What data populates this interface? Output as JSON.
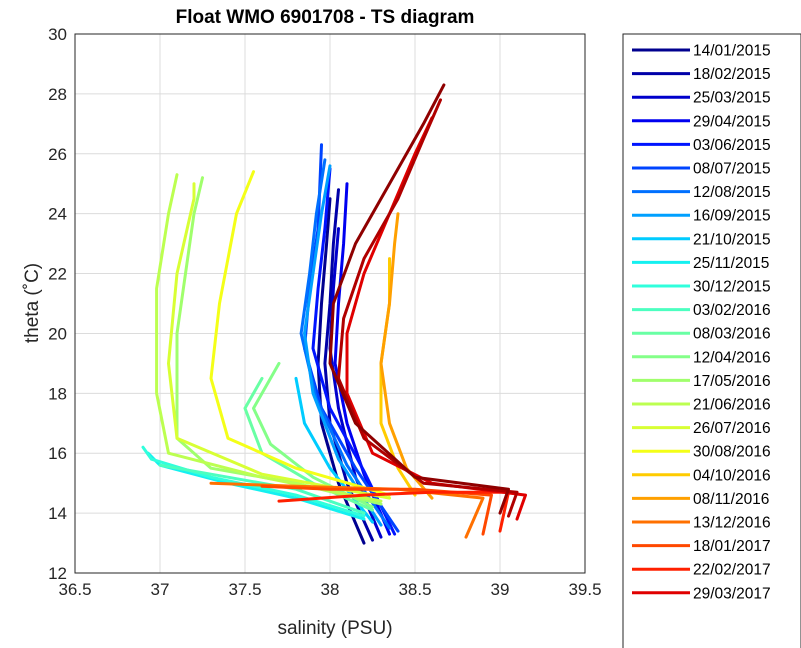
{
  "chart_data": {
    "type": "line",
    "title": "Float WMO 6901708 - TS diagram",
    "xlabel": "salinity (PSU)",
    "ylabel": "theta (˚C)",
    "xlim": [
      36.5,
      39.5
    ],
    "ylim": [
      12,
      30
    ],
    "xticks": [
      "36.5",
      "37",
      "37.5",
      "38",
      "38.5",
      "39",
      "39.5"
    ],
    "yticks": [
      "12",
      "14",
      "16",
      "18",
      "20",
      "22",
      "24",
      "26",
      "28",
      "30"
    ],
    "grid": true,
    "legend_position": "outside-right",
    "series": [
      {
        "name": "14/01/2015",
        "color": "#00008f",
        "points": [
          [
            38.2,
            13.0
          ],
          [
            38.05,
            15.0
          ],
          [
            37.95,
            17.0
          ],
          [
            37.93,
            19.0
          ],
          [
            37.95,
            21.0
          ],
          [
            37.98,
            23.0
          ],
          [
            38.0,
            24.5
          ]
        ]
      },
      {
        "name": "18/02/2015",
        "color": "#0000a8",
        "points": [
          [
            38.25,
            13.1
          ],
          [
            38.1,
            15.0
          ],
          [
            38.0,
            17.0
          ],
          [
            37.97,
            19.0
          ],
          [
            38.0,
            21.0
          ],
          [
            38.02,
            23.0
          ],
          [
            38.05,
            24.8
          ]
        ]
      },
      {
        "name": "25/03/2015",
        "color": "#0000cc",
        "points": [
          [
            38.3,
            13.2
          ],
          [
            38.15,
            15.2
          ],
          [
            38.05,
            17.5
          ],
          [
            38.0,
            19.5
          ],
          [
            38.02,
            21.5
          ],
          [
            38.05,
            23.5
          ]
        ]
      },
      {
        "name": "29/04/2015",
        "color": "#0000f0",
        "points": [
          [
            38.35,
            13.3
          ],
          [
            38.2,
            15.3
          ],
          [
            38.1,
            17.0
          ],
          [
            38.03,
            19.0
          ],
          [
            38.05,
            21.0
          ],
          [
            38.08,
            23.0
          ],
          [
            38.1,
            25.0
          ]
        ]
      },
      {
        "name": "03/06/2015",
        "color": "#0014ff",
        "points": [
          [
            38.38,
            13.3
          ],
          [
            38.2,
            15.4
          ],
          [
            38.0,
            17.5
          ],
          [
            37.9,
            19.5
          ],
          [
            37.93,
            21.5
          ],
          [
            37.97,
            23.5
          ],
          [
            38.0,
            25.5
          ]
        ]
      },
      {
        "name": "08/07/2015",
        "color": "#0044ff",
        "points": [
          [
            38.4,
            13.4
          ],
          [
            38.15,
            15.5
          ],
          [
            37.95,
            17.5
          ],
          [
            37.85,
            19.5
          ],
          [
            37.88,
            21.5
          ],
          [
            37.93,
            23.5
          ],
          [
            37.95,
            26.3
          ]
        ]
      },
      {
        "name": "12/08/2015",
        "color": "#0070ff",
        "points": [
          [
            38.35,
            13.5
          ],
          [
            38.1,
            15.6
          ],
          [
            37.92,
            17.8
          ],
          [
            37.83,
            20.0
          ],
          [
            37.88,
            22.0
          ],
          [
            37.92,
            24.0
          ],
          [
            37.97,
            25.8
          ]
        ]
      },
      {
        "name": "16/09/2015",
        "color": "#00a0ff",
        "points": [
          [
            38.3,
            13.6
          ],
          [
            38.05,
            15.8
          ],
          [
            37.9,
            18.0
          ],
          [
            37.85,
            20.0
          ],
          [
            37.9,
            22.0
          ],
          [
            37.95,
            24.0
          ],
          [
            38.0,
            25.6
          ]
        ]
      },
      {
        "name": "21/10/2015",
        "color": "#00ccff",
        "points": [
          [
            38.25,
            13.7
          ],
          [
            38.0,
            15.5
          ],
          [
            37.85,
            17.0
          ],
          [
            37.8,
            18.5
          ]
        ]
      },
      {
        "name": "25/11/2015",
        "color": "#14f0f0",
        "points": [
          [
            38.2,
            13.8
          ],
          [
            37.8,
            14.5
          ],
          [
            37.4,
            15.0
          ],
          [
            37.0,
            15.6
          ],
          [
            36.93,
            16.0
          ]
        ]
      },
      {
        "name": "30/12/2015",
        "color": "#30ffdc",
        "points": [
          [
            38.2,
            13.9
          ],
          [
            37.8,
            14.6
          ],
          [
            37.3,
            15.2
          ],
          [
            36.95,
            15.8
          ],
          [
            36.9,
            16.2
          ]
        ]
      },
      {
        "name": "03/02/2016",
        "color": "#4cffc0",
        "points": [
          [
            38.2,
            14.0
          ],
          [
            37.8,
            14.8
          ],
          [
            37.3,
            15.3
          ],
          [
            37.0,
            15.6
          ]
        ]
      },
      {
        "name": "08/03/2016",
        "color": "#68ffa4",
        "points": [
          [
            38.25,
            14.1
          ],
          [
            37.9,
            15.0
          ],
          [
            37.6,
            16.0
          ],
          [
            37.5,
            17.5
          ],
          [
            37.6,
            18.5
          ]
        ]
      },
      {
        "name": "12/04/2016",
        "color": "#84ff88",
        "points": [
          [
            38.25,
            14.2
          ],
          [
            37.9,
            15.2
          ],
          [
            37.65,
            16.3
          ],
          [
            37.55,
            17.5
          ],
          [
            37.7,
            19.0
          ]
        ]
      },
      {
        "name": "17/05/2016",
        "color": "#a0ff6c",
        "points": [
          [
            38.3,
            14.3
          ],
          [
            37.8,
            15.0
          ],
          [
            37.3,
            15.5
          ],
          [
            37.1,
            16.5
          ],
          [
            37.1,
            20.0
          ],
          [
            37.2,
            24.0
          ],
          [
            37.25,
            25.2
          ]
        ]
      },
      {
        "name": "21/06/2016",
        "color": "#bcff50",
        "points": [
          [
            38.3,
            14.4
          ],
          [
            37.6,
            15.2
          ],
          [
            37.05,
            16.0
          ],
          [
            36.98,
            18.0
          ],
          [
            36.98,
            21.5
          ],
          [
            37.05,
            24.0
          ],
          [
            37.1,
            25.3
          ]
        ]
      },
      {
        "name": "26/07/2016",
        "color": "#d8ff34",
        "points": [
          [
            38.35,
            14.5
          ],
          [
            37.6,
            15.3
          ],
          [
            37.1,
            16.5
          ],
          [
            37.05,
            19.0
          ],
          [
            37.1,
            22.0
          ],
          [
            37.2,
            24.5
          ],
          [
            37.2,
            25.0
          ]
        ]
      },
      {
        "name": "30/08/2016",
        "color": "#f4ff18",
        "points": [
          [
            38.35,
            14.6
          ],
          [
            37.8,
            15.5
          ],
          [
            37.4,
            16.5
          ],
          [
            37.3,
            18.5
          ],
          [
            37.35,
            21.0
          ],
          [
            37.45,
            24.0
          ],
          [
            37.55,
            25.4
          ]
        ]
      },
      {
        "name": "04/10/2016",
        "color": "#ffcc00",
        "points": [
          [
            38.5,
            14.6
          ],
          [
            38.4,
            15.5
          ],
          [
            38.3,
            17.0
          ],
          [
            38.3,
            19.0
          ],
          [
            38.35,
            21.0
          ],
          [
            38.35,
            22.5
          ]
        ]
      },
      {
        "name": "08/11/2016",
        "color": "#ffa000",
        "points": [
          [
            38.6,
            14.5
          ],
          [
            38.45,
            15.5
          ],
          [
            38.35,
            17.0
          ],
          [
            38.3,
            19.0
          ],
          [
            38.35,
            21.0
          ],
          [
            38.38,
            23.0
          ],
          [
            38.4,
            24.0
          ]
        ]
      },
      {
        "name": "13/12/2016",
        "color": "#ff7000",
        "points": [
          [
            38.8,
            13.2
          ],
          [
            38.9,
            14.5
          ],
          [
            38.4,
            14.8
          ],
          [
            37.8,
            14.9
          ],
          [
            37.3,
            15.0
          ]
        ]
      },
      {
        "name": "18/01/2017",
        "color": "#ff4800",
        "points": [
          [
            38.9,
            13.3
          ],
          [
            38.95,
            14.6
          ],
          [
            38.5,
            14.8
          ],
          [
            38.0,
            14.8
          ],
          [
            37.6,
            14.9
          ]
        ]
      },
      {
        "name": "22/02/2017",
        "color": "#ff2000",
        "points": [
          [
            39.0,
            13.4
          ],
          [
            39.05,
            14.7
          ],
          [
            38.6,
            14.7
          ],
          [
            38.2,
            14.6
          ],
          [
            37.7,
            14.4
          ]
        ]
      },
      {
        "name": "29/03/2017",
        "color": "#e00000",
        "points": [
          [
            39.1,
            13.8
          ],
          [
            39.15,
            14.6
          ],
          [
            38.6,
            15.0
          ],
          [
            38.25,
            16.0
          ],
          [
            38.1,
            18.0
          ],
          [
            38.1,
            20.0
          ],
          [
            38.2,
            22.0
          ],
          [
            38.35,
            24.0
          ],
          [
            38.5,
            26.0
          ],
          [
            38.6,
            27.2
          ]
        ]
      },
      {
        "name": "",
        "color": "#b00000",
        "points": [
          [
            39.05,
            13.9
          ],
          [
            39.1,
            14.7
          ],
          [
            38.55,
            15.0
          ],
          [
            38.2,
            16.5
          ],
          [
            38.05,
            18.5
          ],
          [
            38.08,
            20.5
          ],
          [
            38.2,
            22.5
          ],
          [
            38.4,
            24.5
          ],
          [
            38.55,
            26.5
          ],
          [
            38.65,
            27.8
          ]
        ]
      },
      {
        "name": "",
        "color": "#8f0000",
        "points": [
          [
            39.0,
            14.0
          ],
          [
            39.05,
            14.8
          ],
          [
            38.5,
            15.2
          ],
          [
            38.15,
            17.0
          ],
          [
            38.0,
            19.0
          ],
          [
            38.02,
            21.0
          ],
          [
            38.15,
            23.0
          ],
          [
            38.35,
            25.0
          ],
          [
            38.55,
            27.0
          ],
          [
            38.67,
            28.3
          ]
        ]
      }
    ]
  }
}
